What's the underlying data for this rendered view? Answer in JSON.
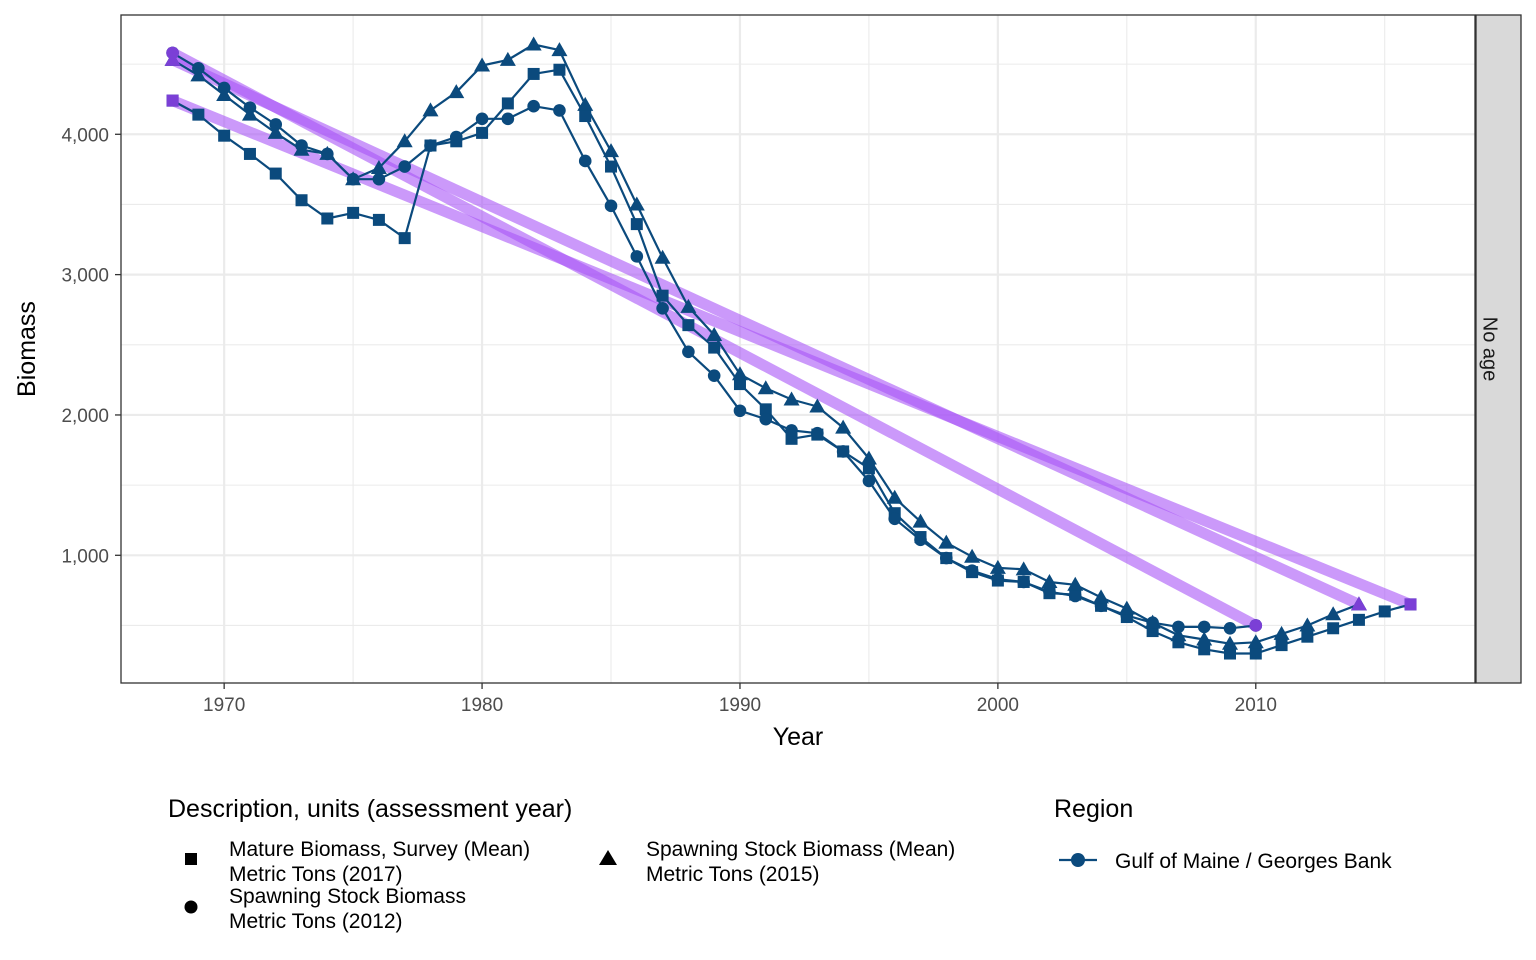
{
  "chart_data": {
    "type": "line",
    "xlabel": "Year",
    "ylabel": "Biomass",
    "xlim": [
      1966,
      2018.5
    ],
    "ylim": [
      90,
      4850
    ],
    "x_ticks": [
      1970,
      1980,
      1990,
      2000,
      2010
    ],
    "y_ticks": [
      1000,
      2000,
      3000,
      4000
    ],
    "x_tick_labels": [
      "1970",
      "1980",
      "1990",
      "2000",
      "2010"
    ],
    "y_tick_labels": [
      "1,000",
      "2,000",
      "3,000",
      "4,000"
    ],
    "grid": true,
    "facet_label": "No age",
    "colors": {
      "series": "#0b4a7d",
      "trend": "#a855f7",
      "trend_end": "#7b3fd6",
      "panel_border": "#333333",
      "grid": "#ebebeb",
      "strip_fill": "#d9d9d9"
    },
    "series": [
      {
        "name": "Mature Biomass, Survey (Mean) Metric Tons (2017)",
        "shape": "square",
        "x": [
          1968,
          1969,
          1970,
          1971,
          1972,
          1973,
          1974,
          1975,
          1976,
          1977,
          1978,
          1979,
          1980,
          1981,
          1982,
          1983,
          1984,
          1985,
          1986,
          1987,
          1988,
          1989,
          1990,
          1991,
          1992,
          1993,
          1994,
          1995,
          1996,
          1997,
          1998,
          1999,
          2000,
          2001,
          2002,
          2003,
          2004,
          2005,
          2006,
          2007,
          2008,
          2009,
          2010,
          2011,
          2012,
          2013,
          2014,
          2015,
          2016
        ],
        "y": [
          4240,
          4140,
          3990,
          3860,
          3720,
          3530,
          3400,
          3440,
          3390,
          3260,
          3920,
          3950,
          4010,
          4220,
          4430,
          4460,
          4130,
          3770,
          3360,
          2850,
          2640,
          2480,
          2220,
          2040,
          1830,
          1860,
          1740,
          1620,
          1300,
          1130,
          980,
          880,
          820,
          810,
          730,
          720,
          640,
          560,
          460,
          380,
          330,
          300,
          300,
          360,
          420,
          480,
          540,
          600,
          650
        ],
        "trend": [
          4240,
          650
        ]
      },
      {
        "name": "Spawning Stock Biomass Metric Tons (2012)",
        "shape": "circle",
        "x": [
          1968,
          1969,
          1970,
          1971,
          1972,
          1973,
          1974,
          1975,
          1976,
          1977,
          1978,
          1979,
          1980,
          1981,
          1982,
          1983,
          1984,
          1985,
          1986,
          1987,
          1988,
          1989,
          1990,
          1991,
          1992,
          1993,
          1994,
          1995,
          1996,
          1997,
          1998,
          1999,
          2000,
          2001,
          2002,
          2003,
          2004,
          2005,
          2006,
          2007,
          2008,
          2009,
          2010
        ],
        "y": [
          4580,
          4470,
          4330,
          4190,
          4070,
          3920,
          3860,
          3680,
          3680,
          3770,
          3920,
          3980,
          4110,
          4110,
          4200,
          4170,
          3810,
          3490,
          3130,
          2760,
          2450,
          2280,
          2030,
          1970,
          1890,
          1870,
          1740,
          1530,
          1260,
          1110,
          980,
          890,
          830,
          810,
          740,
          710,
          640,
          570,
          520,
          490,
          490,
          480,
          500
        ],
        "trend": [
          4580,
          500
        ]
      },
      {
        "name": "Spawning Stock Biomass (Mean) Metric Tons (2015)",
        "shape": "triangle",
        "x": [
          1968,
          1969,
          1970,
          1971,
          1972,
          1973,
          1974,
          1975,
          1976,
          1977,
          1978,
          1979,
          1980,
          1981,
          1982,
          1983,
          1984,
          1985,
          1986,
          1987,
          1988,
          1989,
          1990,
          1991,
          1992,
          1993,
          1994,
          1995,
          1996,
          1997,
          1998,
          1999,
          2000,
          2001,
          2002,
          2003,
          2004,
          2005,
          2006,
          2007,
          2008,
          2009,
          2010,
          2011,
          2012,
          2013,
          2014
        ],
        "y": [
          4530,
          4420,
          4280,
          4140,
          4010,
          3890,
          3860,
          3680,
          3760,
          3950,
          4170,
          4300,
          4490,
          4530,
          4640,
          4600,
          4210,
          3880,
          3500,
          3120,
          2770,
          2570,
          2290,
          2190,
          2110,
          2060,
          1910,
          1690,
          1410,
          1240,
          1090,
          990,
          910,
          900,
          810,
          790,
          700,
          620,
          520,
          430,
          400,
          370,
          380,
          440,
          500,
          580,
          650
        ],
        "trend": [
          4530,
          650
        ]
      }
    ]
  },
  "legend": {
    "description_title": "Description, units (assessment year)",
    "items": [
      {
        "line1": "Mature Biomass, Survey (Mean)",
        "line2": "Metric Tons (2017)"
      },
      {
        "line1": "Spawning Stock Biomass",
        "line2": "Metric Tons (2012)"
      },
      {
        "line1": "Spawning Stock Biomass (Mean)",
        "line2": "Metric Tons (2015)"
      }
    ],
    "region_title": "Region",
    "region_label": "Gulf of Maine / Georges Bank"
  }
}
